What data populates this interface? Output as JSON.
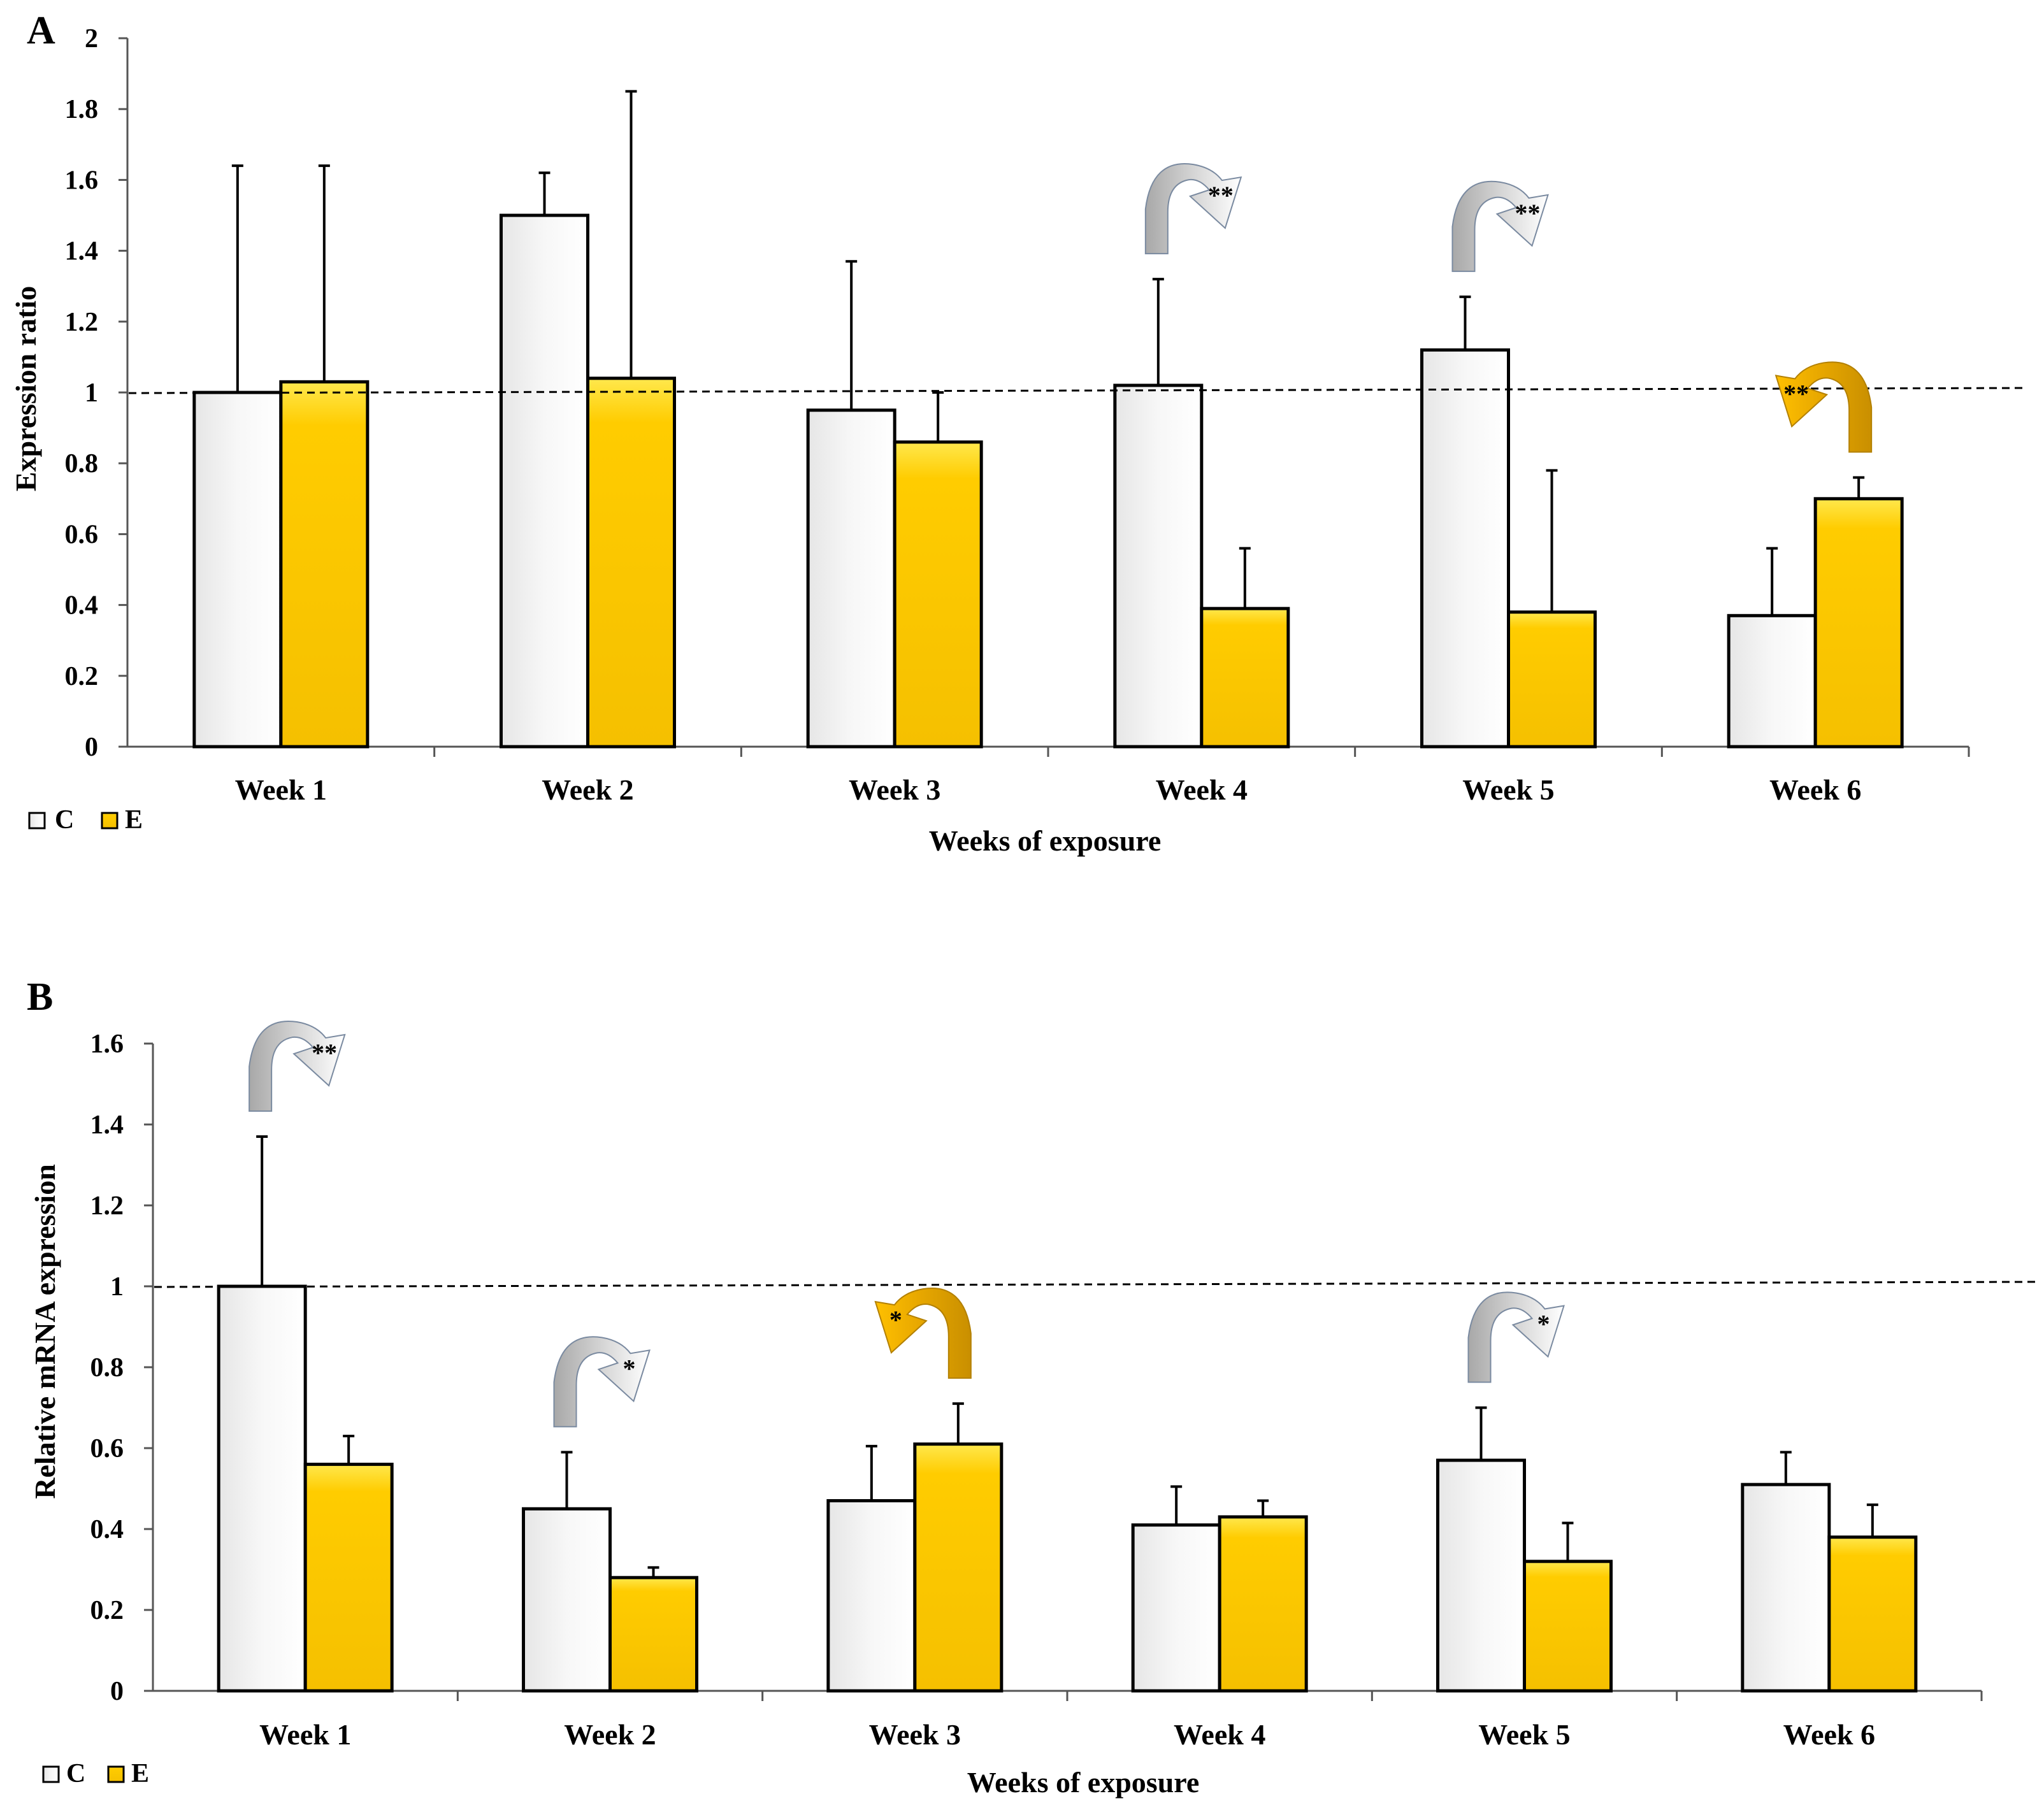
{
  "chart_data": [
    {
      "panel": "A",
      "type": "bar",
      "xlabel": "Weeks of exposure",
      "ylabel": "Expression ratio",
      "ylim": [
        0,
        2
      ],
      "yticks": [
        "0",
        "0.2",
        "0.4",
        "0.6",
        "0.8",
        "1",
        "1.2",
        "1.4",
        "1.6",
        "1.8",
        "2"
      ],
      "categories": [
        "Week 1",
        "Week 2",
        "Week 3",
        "Week 4",
        "Week 5",
        "Week 6"
      ],
      "reference_line": 1,
      "series": [
        {
          "name": "C",
          "color": "#ffffff",
          "values": [
            1.0,
            1.5,
            0.95,
            1.02,
            1.12,
            0.37
          ],
          "errors": [
            0.64,
            0.12,
            0.42,
            0.3,
            0.15,
            0.19
          ]
        },
        {
          "name": "E",
          "color": "#ffcc00",
          "values": [
            1.03,
            1.04,
            0.86,
            0.39,
            0.38,
            0.7
          ],
          "errors": [
            0.61,
            0.81,
            0.14,
            0.17,
            0.4,
            0.06
          ]
        }
      ],
      "annotations": [
        {
          "category": "Week 4",
          "direction": "down",
          "label": "**"
        },
        {
          "category": "Week 5",
          "direction": "down",
          "label": "**"
        },
        {
          "category": "Week 6",
          "direction": "up",
          "label": "**"
        }
      ]
    },
    {
      "panel": "B",
      "type": "bar",
      "xlabel": "Weeks of exposure",
      "ylabel": "Relative mRNA expression",
      "ylim": [
        0,
        1.6
      ],
      "yticks": [
        "0",
        "0.2",
        "0.4",
        "0.6",
        "0.8",
        "1",
        "1.2",
        "1.4",
        "1.6"
      ],
      "categories": [
        "Week 1",
        "Week 2",
        "Week 3",
        "Week 4",
        "Week 5",
        "Week 6"
      ],
      "reference_line": 1,
      "series": [
        {
          "name": "C",
          "color": "#ffffff",
          "values": [
            1.0,
            0.45,
            0.47,
            0.41,
            0.57,
            0.51
          ],
          "errors": [
            0.37,
            0.14,
            0.135,
            0.095,
            0.13,
            0.08
          ]
        },
        {
          "name": "E",
          "color": "#ffcc00",
          "values": [
            0.56,
            0.28,
            0.61,
            0.43,
            0.32,
            0.38
          ],
          "errors": [
            0.07,
            0.025,
            0.1,
            0.04,
            0.095,
            0.08
          ]
        }
      ],
      "annotations": [
        {
          "category": "Week 1",
          "direction": "down",
          "label": "**"
        },
        {
          "category": "Week 2",
          "direction": "down",
          "label": "*"
        },
        {
          "category": "Week 3",
          "direction": "up",
          "label": "*"
        },
        {
          "category": "Week 5",
          "direction": "down",
          "label": "*"
        }
      ]
    }
  ]
}
